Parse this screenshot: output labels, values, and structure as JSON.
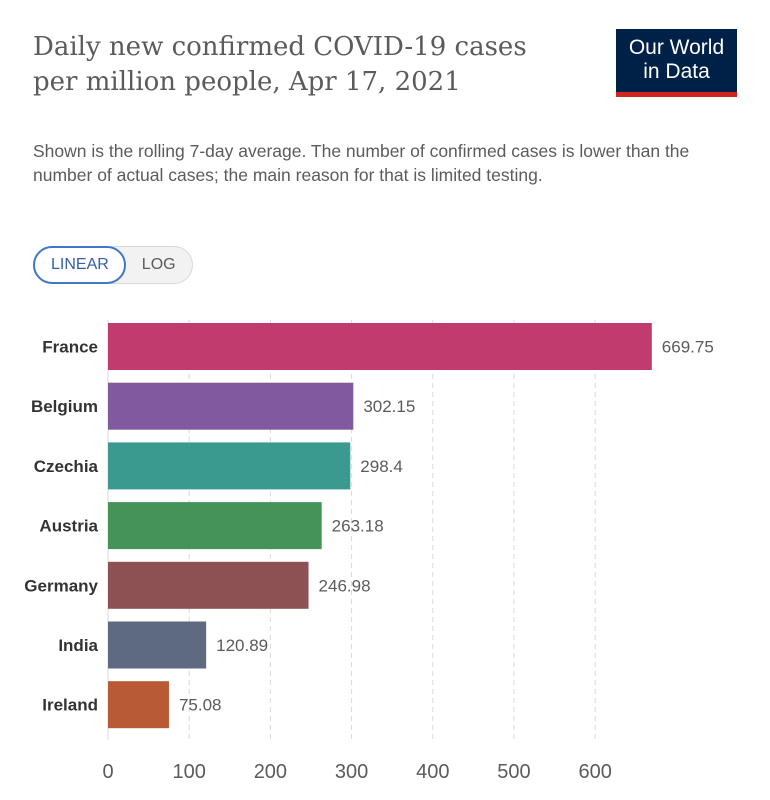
{
  "header": {
    "title": "Daily new confirmed COVID-19 cases per million people, Apr 17, 2021",
    "subtitle": "Shown is the rolling 7-day average. The number of confirmed cases is lower than the number of actual cases; the main reason for that is limited testing.",
    "logo_line1": "Our World",
    "logo_line2": "in Data"
  },
  "toggle": {
    "linear_label": "LINEAR",
    "log_label": "LOG",
    "selected": "LINEAR"
  },
  "colors": {
    "grid": "#d9d9d9",
    "axis_text": "#5b5b5b",
    "label_text": "#333333"
  },
  "chart_data": {
    "type": "bar",
    "orientation": "horizontal",
    "title": "",
    "xlabel": "",
    "ylabel": "",
    "xlim": [
      0,
      670
    ],
    "xticks": [
      0,
      100,
      200,
      300,
      400,
      500,
      600
    ],
    "grid": true,
    "categories": [
      "France",
      "Belgium",
      "Czechia",
      "Austria",
      "Germany",
      "India",
      "Ireland"
    ],
    "values": [
      669.75,
      302.15,
      298.4,
      263.18,
      246.98,
      120.89,
      75.08
    ],
    "value_labels": [
      "669.75",
      "302.15",
      "298.4",
      "263.18",
      "246.98",
      "120.89",
      "75.08"
    ],
    "colors": [
      "#c23b6f",
      "#7f5a9e",
      "#3a9a8f",
      "#46935a",
      "#8d5154",
      "#5d6a7f",
      "#b85a36"
    ]
  }
}
